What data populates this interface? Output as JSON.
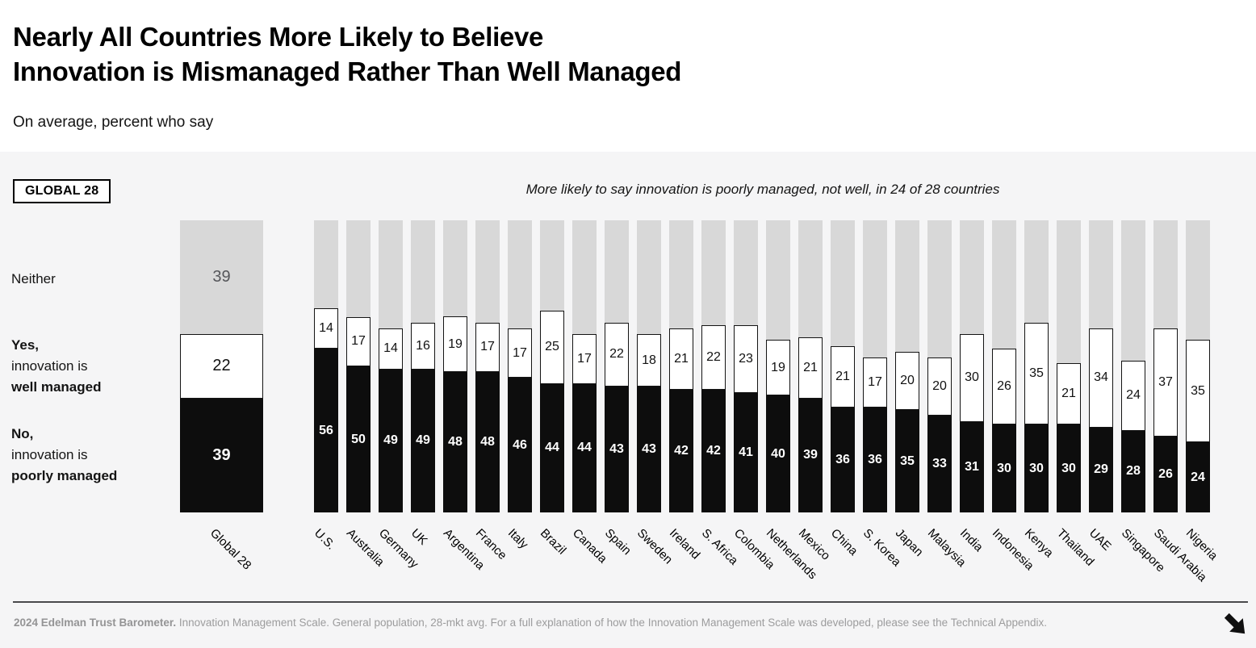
{
  "header": {
    "title_line1": "Nearly All Countries More Likely to Believe",
    "title_line2": "Innovation is Mismanaged Rather Than Well Managed",
    "subtitle": "On average, percent who say"
  },
  "chart": {
    "badge": "GLOBAL 28",
    "annotation": "More likely to say innovation is poorly managed, not well, in 24 of 28 countries",
    "legend": {
      "neither": "Neither",
      "yes_prefix": "Yes,",
      "yes_mid": "innovation is",
      "yes_bold": "well managed",
      "no_prefix": "No,",
      "no_mid": "innovation is",
      "no_bold": "poorly managed"
    }
  },
  "chart_data": {
    "type": "bar",
    "stacked": true,
    "unit": "percent",
    "ylim": [
      0,
      100
    ],
    "grid": false,
    "note": "More likely to say innovation is poorly managed, not well, in 24 of 28 countries",
    "global": {
      "label": "Global 28",
      "poorly_managed": 39,
      "well_managed": 22,
      "neither": 39
    },
    "categories": [
      "U.S.",
      "Australia",
      "Germany",
      "UK",
      "Argentina",
      "France",
      "Italy",
      "Brazil",
      "Canada",
      "Spain",
      "Sweden",
      "Ireland",
      "S. Africa",
      "Colombia",
      "Netherlands",
      "Mexico",
      "China",
      "S. Korea",
      "Japan",
      "Malaysia",
      "India",
      "Indonesia",
      "Kenya",
      "Thailand",
      "UAE",
      "Singapore",
      "Saudi Arabia",
      "Nigeria"
    ],
    "series": [
      {
        "name": "No, innovation is poorly managed",
        "color": "#0d0d0d",
        "values": [
          56,
          50,
          49,
          49,
          48,
          48,
          46,
          44,
          44,
          43,
          43,
          42,
          42,
          41,
          40,
          39,
          36,
          36,
          35,
          33,
          31,
          30,
          30,
          30,
          29,
          28,
          26,
          24
        ]
      },
      {
        "name": "Yes, innovation is well managed",
        "color": "#ffffff",
        "values": [
          14,
          17,
          14,
          16,
          19,
          17,
          17,
          25,
          17,
          22,
          18,
          21,
          22,
          23,
          19,
          21,
          21,
          17,
          20,
          20,
          30,
          26,
          35,
          21,
          34,
          24,
          37,
          35
        ]
      },
      {
        "name": "Neither",
        "color": "#d8d8d8",
        "values": [
          30,
          33,
          37,
          35,
          33,
          35,
          37,
          31,
          39,
          35,
          39,
          37,
          36,
          36,
          41,
          40,
          43,
          47,
          45,
          47,
          39,
          44,
          35,
          49,
          37,
          48,
          37,
          41
        ]
      }
    ]
  },
  "footer": {
    "source_bold": "2024 Edelman Trust Barometer.",
    "source_rest": " Innovation Management Scale. General population, 28-mkt avg. For a full explanation of how the Innovation Management Scale was developed, please see the Technical Appendix."
  },
  "colors": {
    "panel_bg": "#f5f5f6",
    "neither_gray": "#d8d8d8",
    "bar_black": "#0d0d0d",
    "footer_text": "#9c9c9d",
    "footer_line": "#4a4a4c"
  }
}
